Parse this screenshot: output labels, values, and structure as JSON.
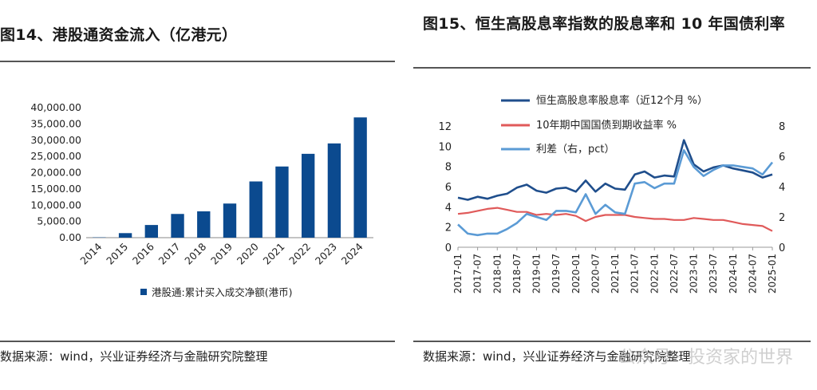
{
  "left": {
    "title": "图14、港股通资金流入（亿港元）",
    "source": "数据来源：wind，兴业证券经济与金融研究院整理"
  },
  "right": {
    "title": "图15、恒生高股息率指数的股息率和 10 年国债利率",
    "source": "数据来源：wind，兴业证券经济与金融研究院整理"
  },
  "watermark": "公众号 · 投资家的世界",
  "chart_data": [
    {
      "type": "bar",
      "categories": [
        "2014",
        "2015",
        "2016",
        "2017",
        "2018",
        "2019",
        "2020",
        "2021",
        "2022",
        "2023",
        "2024"
      ],
      "series": [
        {
          "name": "港股通:累计买入成交净额(港币)",
          "values": [
            100,
            1400,
            3900,
            7300,
            8100,
            10500,
            17300,
            21900,
            25800,
            29000,
            37000
          ],
          "color": "#0b4a8f"
        }
      ],
      "ylim": [
        0,
        40000
      ],
      "yticks": [
        "0.00",
        "5,000.00",
        "10,000.00",
        "15,000.00",
        "20,000.00",
        "25,000.00",
        "30,000.00",
        "35,000.00",
        "40,000.00"
      ],
      "legend_position": "bottom"
    },
    {
      "type": "line",
      "x_ticks": [
        "2017-01",
        "2017-07",
        "2018-01",
        "2018-07",
        "2019-01",
        "2019-07",
        "2020-01",
        "2020-07",
        "2021-01",
        "2021-07",
        "2022-01",
        "2022-07",
        "2023-01",
        "2023-07",
        "2024-01",
        "2024-07",
        "2025-01"
      ],
      "ylim_left": [
        0,
        12
      ],
      "yticks_left": [
        "0",
        "2",
        "4",
        "6",
        "8",
        "10",
        "12"
      ],
      "ylim_right": [
        0,
        8
      ],
      "yticks_right": [
        "0",
        "2",
        "4",
        "6",
        "8"
      ],
      "legend_position": "top-left",
      "series": [
        {
          "name": "恒生高股息率股息率（近12个月 %）",
          "axis": "left",
          "color": "#1f4e8c",
          "x": [
            "2017-01",
            "2017-04",
            "2017-07",
            "2017-10",
            "2018-01",
            "2018-04",
            "2018-07",
            "2018-10",
            "2019-01",
            "2019-04",
            "2019-07",
            "2019-10",
            "2020-01",
            "2020-04",
            "2020-07",
            "2020-10",
            "2021-01",
            "2021-04",
            "2021-07",
            "2021-10",
            "2022-01",
            "2022-04",
            "2022-07",
            "2022-10",
            "2023-01",
            "2023-04",
            "2023-07",
            "2023-10",
            "2024-01",
            "2024-04",
            "2024-07",
            "2024-10",
            "2025-01"
          ],
          "values": [
            4.9,
            4.7,
            5.0,
            4.8,
            5.1,
            5.3,
            5.9,
            6.2,
            5.6,
            5.4,
            5.8,
            5.9,
            5.5,
            6.6,
            5.5,
            6.3,
            5.8,
            5.7,
            7.2,
            7.5,
            6.9,
            7.1,
            7.0,
            10.6,
            8.2,
            7.5,
            7.9,
            8.1,
            7.8,
            7.6,
            7.4,
            6.9,
            7.2
          ]
        },
        {
          "name": "10年期中国国债到期收益率 %",
          "axis": "left",
          "color": "#e05a5a",
          "x": [
            "2017-01",
            "2017-04",
            "2017-07",
            "2017-10",
            "2018-01",
            "2018-04",
            "2018-07",
            "2018-10",
            "2019-01",
            "2019-04",
            "2019-07",
            "2019-10",
            "2020-01",
            "2020-04",
            "2020-07",
            "2020-10",
            "2021-01",
            "2021-04",
            "2021-07",
            "2021-10",
            "2022-01",
            "2022-04",
            "2022-07",
            "2022-10",
            "2023-01",
            "2023-04",
            "2023-07",
            "2023-10",
            "2024-01",
            "2024-04",
            "2024-07",
            "2024-10",
            "2025-01"
          ],
          "values": [
            3.3,
            3.4,
            3.6,
            3.8,
            3.9,
            3.7,
            3.5,
            3.5,
            3.2,
            3.3,
            3.2,
            3.3,
            3.1,
            2.6,
            3.0,
            3.2,
            3.2,
            3.2,
            3.0,
            2.9,
            2.8,
            2.8,
            2.7,
            2.7,
            2.9,
            2.8,
            2.7,
            2.7,
            2.5,
            2.3,
            2.2,
            2.1,
            1.6
          ]
        },
        {
          "name": "利差（右，pct）",
          "axis": "right",
          "color": "#5b9bd5",
          "x": [
            "2017-01",
            "2017-04",
            "2017-07",
            "2017-10",
            "2018-01",
            "2018-04",
            "2018-07",
            "2018-10",
            "2019-01",
            "2019-04",
            "2019-07",
            "2019-10",
            "2020-01",
            "2020-04",
            "2020-07",
            "2020-10",
            "2021-01",
            "2021-04",
            "2021-07",
            "2021-10",
            "2022-01",
            "2022-04",
            "2022-07",
            "2022-10",
            "2023-01",
            "2023-04",
            "2023-07",
            "2023-10",
            "2024-01",
            "2024-04",
            "2024-07",
            "2024-10",
            "2025-01"
          ],
          "values": [
            1.5,
            0.9,
            0.8,
            0.9,
            0.9,
            1.2,
            1.6,
            2.2,
            2.0,
            1.8,
            2.4,
            2.4,
            2.3,
            3.5,
            2.2,
            2.8,
            2.3,
            2.2,
            4.2,
            4.3,
            3.9,
            4.2,
            4.2,
            6.4,
            5.3,
            4.7,
            5.1,
            5.4,
            5.4,
            5.3,
            5.2,
            4.8,
            5.6
          ]
        }
      ]
    }
  ]
}
